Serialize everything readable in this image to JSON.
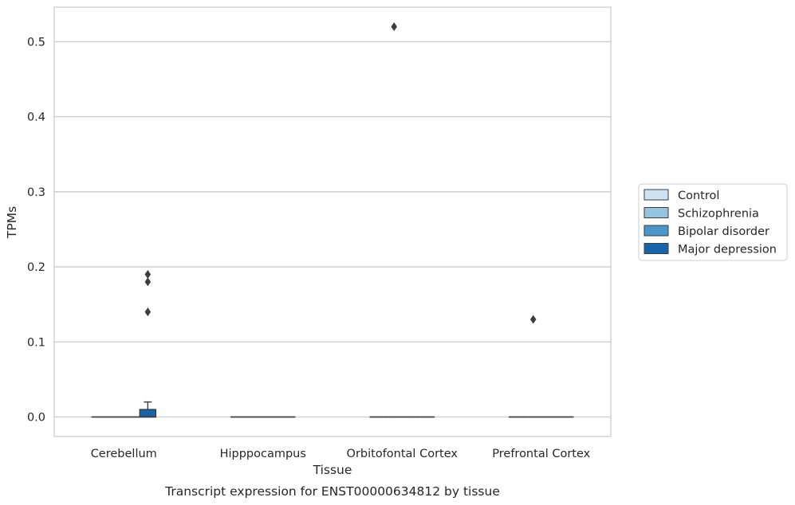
{
  "chart_data": {
    "type": "box",
    "xlabel": "Tissue",
    "ylabel": "TPMs",
    "caption": "Transcript expression for ENST00000634812 by tissue",
    "categories": [
      "Cerebellum",
      "Hipppocampus",
      "Orbitofontal Cortex",
      "Prefrontal Cortex"
    ],
    "ylim": [
      -0.026,
      0.546
    ],
    "yticks": [
      0.0,
      0.1,
      0.2,
      0.3,
      0.4,
      0.5
    ],
    "ytick_labels": [
      "0.0",
      "0.1",
      "0.2",
      "0.3",
      "0.4",
      "0.5"
    ],
    "grid": "horizontal",
    "legend_position": "right",
    "series": [
      {
        "name": "Control",
        "color": "#d0e1f2",
        "boxes": [
          {
            "q1": 0,
            "median": 0,
            "q3": 0,
            "whisker_low": 0,
            "whisker_high": 0,
            "outliers": []
          },
          {
            "q1": 0,
            "median": 0,
            "q3": 0,
            "whisker_low": 0,
            "whisker_high": 0,
            "outliers": []
          },
          {
            "q1": 0,
            "median": 0,
            "q3": 0,
            "whisker_low": 0,
            "whisker_high": 0,
            "outliers": []
          },
          {
            "q1": 0,
            "median": 0,
            "q3": 0,
            "whisker_low": 0,
            "whisker_high": 0,
            "outliers": []
          }
        ]
      },
      {
        "name": "Schizophrenia",
        "color": "#94c4df",
        "boxes": [
          {
            "q1": 0,
            "median": 0,
            "q3": 0,
            "whisker_low": 0,
            "whisker_high": 0,
            "outliers": []
          },
          {
            "q1": 0,
            "median": 0,
            "q3": 0,
            "whisker_low": 0,
            "whisker_high": 0,
            "outliers": []
          },
          {
            "q1": 0,
            "median": 0,
            "q3": 0,
            "whisker_low": 0,
            "whisker_high": 0,
            "outliers": [
              0.52
            ]
          },
          {
            "q1": 0,
            "median": 0,
            "q3": 0,
            "whisker_low": 0,
            "whisker_high": 0,
            "outliers": [
              0.13
            ]
          }
        ]
      },
      {
        "name": "Bipolar disorder",
        "color": "#4a98c9",
        "boxes": [
          {
            "q1": 0,
            "median": 0,
            "q3": 0,
            "whisker_low": 0,
            "whisker_high": 0,
            "outliers": []
          },
          {
            "q1": 0,
            "median": 0,
            "q3": 0,
            "whisker_low": 0,
            "whisker_high": 0,
            "outliers": []
          },
          {
            "q1": 0,
            "median": 0,
            "q3": 0,
            "whisker_low": 0,
            "whisker_high": 0,
            "outliers": []
          },
          {
            "q1": 0,
            "median": 0,
            "q3": 0,
            "whisker_low": 0,
            "whisker_high": 0,
            "outliers": []
          }
        ]
      },
      {
        "name": "Major depression",
        "color": "#1764ab",
        "boxes": [
          {
            "q1": 0,
            "median": 0,
            "q3": 0.01,
            "whisker_low": 0,
            "whisker_high": 0.02,
            "outliers": [
              0.14,
              0.18,
              0.19
            ]
          },
          {
            "q1": 0,
            "median": 0,
            "q3": 0,
            "whisker_low": 0,
            "whisker_high": 0,
            "outliers": []
          },
          {
            "q1": 0,
            "median": 0,
            "q3": 0,
            "whisker_low": 0,
            "whisker_high": 0,
            "outliers": []
          },
          {
            "q1": 0,
            "median": 0,
            "q3": 0,
            "whisker_low": 0,
            "whisker_high": 0,
            "outliers": []
          }
        ]
      }
    ]
  }
}
